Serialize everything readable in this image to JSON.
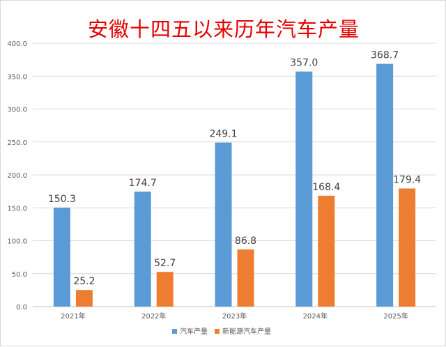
{
  "chart_data": {
    "type": "bar",
    "title": "安徽十四五以来历年汽车产量",
    "categories": [
      "2021年",
      "2022年",
      "2023年",
      "2024年",
      "2025年"
    ],
    "series": [
      {
        "name": "汽车产量",
        "color": "#5b9bd5",
        "values": [
          150.3,
          174.7,
          249.1,
          357.0,
          368.7
        ],
        "labels": [
          "150.3",
          "174.7",
          "249.1",
          "357.0",
          "368.7"
        ]
      },
      {
        "name": "新能源汽车产量",
        "color": "#ed7d31",
        "values": [
          25.2,
          52.7,
          86.8,
          168.4,
          179.4
        ],
        "labels": [
          "25.2",
          "52.7",
          "86.8",
          "168.4",
          "179.4"
        ]
      }
    ],
    "ylim": [
      0,
      400
    ],
    "yticks": [
      "0.0",
      "50.0",
      "100.0",
      "150.0",
      "200.0",
      "250.0",
      "300.0",
      "350.0",
      "400.0"
    ],
    "grid": true,
    "legend_position": "bottom"
  }
}
